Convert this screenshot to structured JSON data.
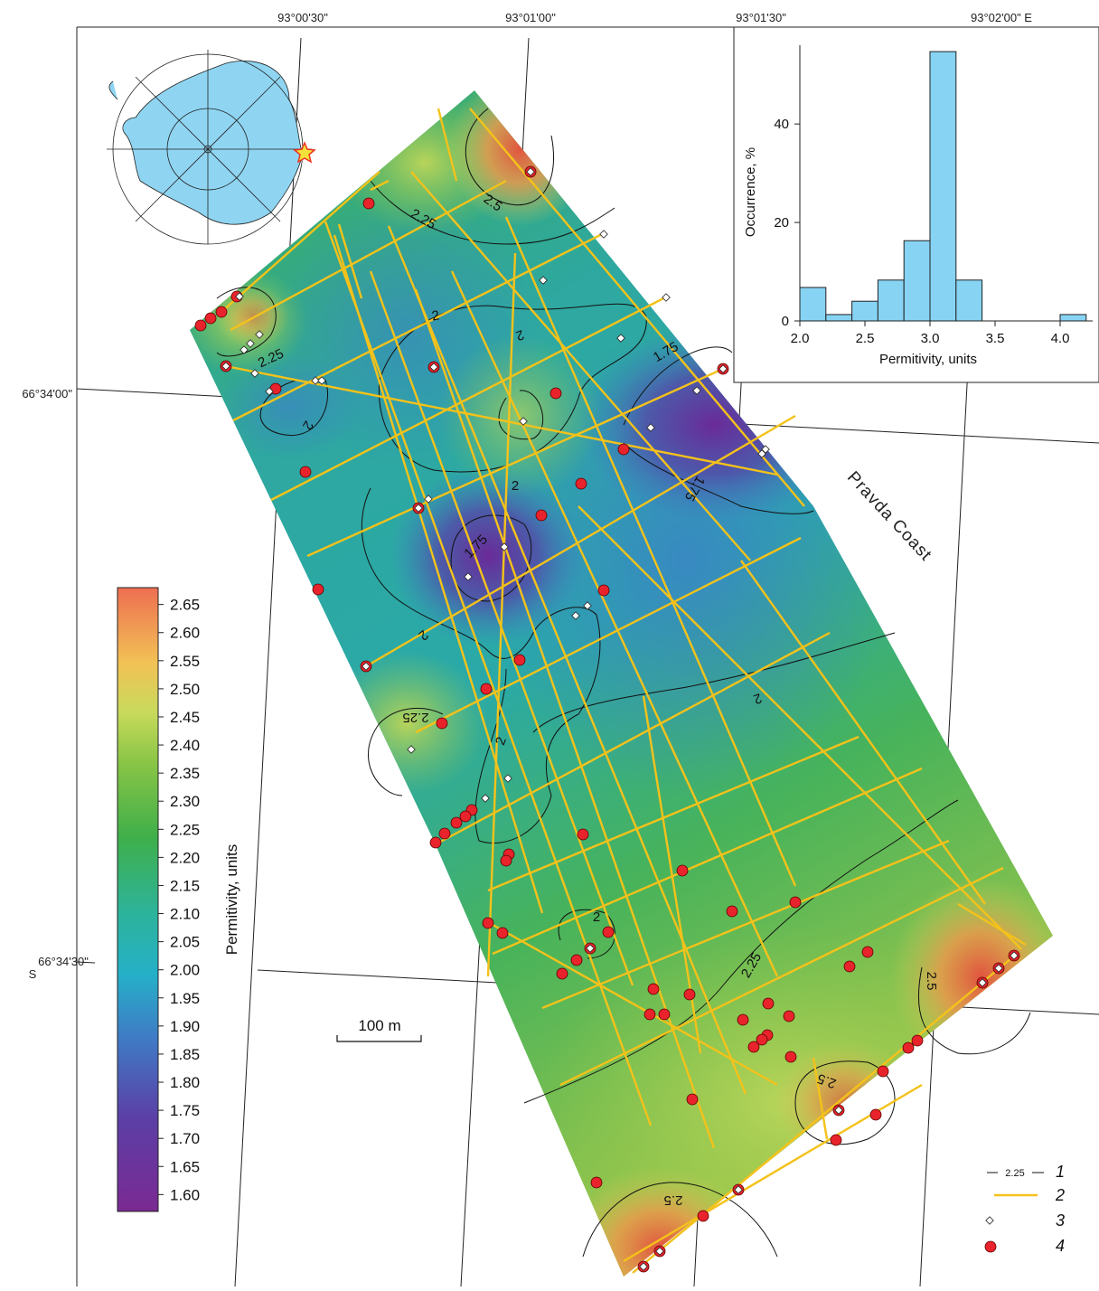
{
  "map": {
    "lon_labels": [
      "93°00'30\"",
      "93°01'00\"",
      "93°01'30\"",
      "93°02'00\" E"
    ],
    "lat_labels": [
      "66°34'00\"",
      "66°34'30\""
    ],
    "hemisphere": "S",
    "region_label": "Pravda Coast",
    "scale_bar": "100 m",
    "contour_labels": [
      "2.5",
      "2.25",
      "2.25",
      "2",
      "2",
      "2",
      "1.75",
      "1.75",
      "1.75",
      "2",
      "2",
      "2.25",
      "2",
      "2",
      "2",
      "2.25",
      "2.5",
      "2.5",
      "2.5"
    ],
    "colorbar": {
      "title": "Permitivity, units",
      "clim": [
        1.57,
        2.68
      ],
      "ticks": [
        {
          "value": 1.6,
          "label": "1.60"
        },
        1.65,
        {
          "value": 1.7,
          "label": "1.70"
        },
        1.75,
        {
          "value": 1.8,
          "label": "1.80"
        },
        1.85,
        {
          "value": 1.9,
          "label": "1.90"
        },
        1.95,
        {
          "value": 2,
          "label": "2.00"
        },
        2.05,
        {
          "value": 2.1,
          "label": "2.10"
        },
        2.15,
        {
          "value": 2.2,
          "label": "2.20"
        },
        2.25,
        {
          "value": 2.3,
          "label": "2.30"
        },
        2.35,
        {
          "value": 2.4,
          "label": "2.40"
        },
        2.45,
        {
          "value": 2.5,
          "label": "2.50"
        },
        2.55,
        {
          "value": 2.6,
          "label": "2.60"
        },
        2.65
      ]
    },
    "legend": {
      "contour_sample": "2.25",
      "items": [
        "1",
        "2",
        "3",
        "4"
      ]
    }
  },
  "chart_data": {
    "type": "histogram",
    "color": "#87d3f3",
    "bins": [
      2.0,
      2.2,
      2.4,
      2.6,
      2.8,
      3.0,
      3.2,
      3.4,
      3.6,
      3.8,
      4.0,
      4.2
    ],
    "values": [
      6.8,
      1.3,
      4,
      8.3,
      16.3,
      54.7,
      8.3,
      0,
      0,
      0,
      1.3
    ],
    "xlabel": "Permitivity, units",
    "ylabel": "Occurrence, %",
    "xlim": [
      2.0,
      4.25
    ],
    "ylim": [
      0,
      56
    ],
    "xticks": [
      {
        "value": 2,
        "label": "2.0"
      },
      2.5,
      {
        "value": 3,
        "label": "3.0"
      },
      3.5,
      {
        "value": 4,
        "label": "4.0"
      }
    ],
    "yticks": [
      0,
      20,
      40
    ]
  }
}
